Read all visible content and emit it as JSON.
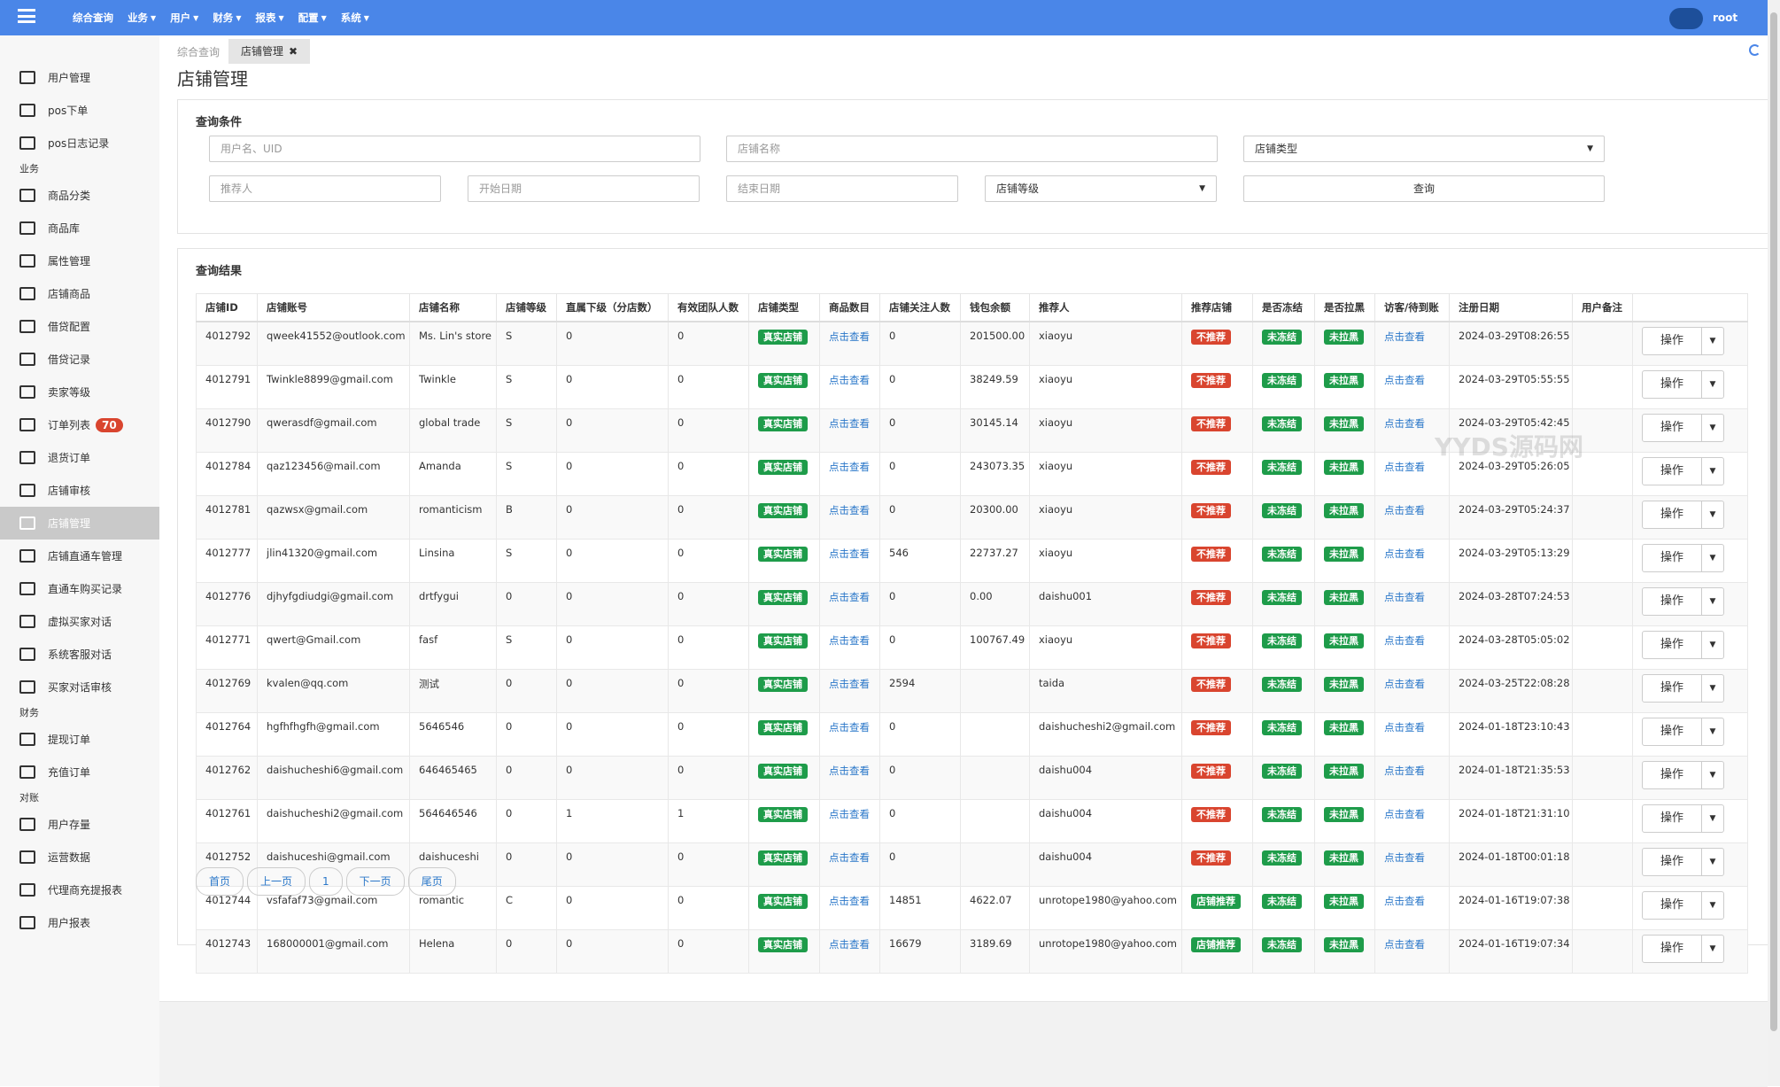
{
  "topbar": {
    "nav": [
      "综合查询",
      "业务",
      "用户",
      "财务",
      "报表",
      "配置",
      "系统"
    ],
    "user": "root"
  },
  "sidebar": [
    {
      "label": "用户管理"
    },
    {
      "label": "pos下单"
    },
    {
      "label": "pos日志记录"
    },
    {
      "heading": "业务"
    },
    {
      "label": "商品分类"
    },
    {
      "label": "商品库"
    },
    {
      "label": "属性管理"
    },
    {
      "label": "店铺商品"
    },
    {
      "label": "借贷配置"
    },
    {
      "label": "借贷记录"
    },
    {
      "label": "卖家等级"
    },
    {
      "label": "订单列表",
      "badge": 70
    },
    {
      "label": "退货订单"
    },
    {
      "label": "店铺审核"
    },
    {
      "label": "店铺管理",
      "active": true
    },
    {
      "label": "店铺直通车管理"
    },
    {
      "label": "直通车购买记录"
    },
    {
      "label": "虚拟买家对话"
    },
    {
      "label": "系统客服对话"
    },
    {
      "label": "买家对话审核"
    },
    {
      "heading": "财务"
    },
    {
      "label": "提现订单"
    },
    {
      "label": "充值订单"
    },
    {
      "heading": "对账"
    },
    {
      "label": "用户存量"
    },
    {
      "label": "运营数据"
    },
    {
      "label": "代理商充提报表"
    },
    {
      "label": "用户报表"
    }
  ],
  "tabs": [
    "综合查询",
    "店铺管理"
  ],
  "page_title": "店铺管理",
  "query": {
    "title": "查询条件",
    "username": "用户名、UID",
    "shop_name": "店铺名称",
    "shop_type": "店铺类型",
    "referrer": "推荐人",
    "start_date": "开始日期",
    "end_date": "结束日期",
    "shop_level": "店铺等级",
    "button": "查询"
  },
  "results": {
    "title": "查询结果",
    "headers": [
      "店铺ID",
      "店铺账号",
      "店铺名称",
      "店铺等级",
      "直属下级（分店数）",
      "有效团队人数",
      "店铺类型",
      "商品数目",
      "店铺关注人数",
      "钱包余额",
      "推荐人",
      "推荐店铺",
      "是否冻结",
      "是否拉黑",
      "访客/待到账",
      "注册日期",
      "用户备注"
    ],
    "action": "操作",
    "rows": [
      [
        "4012792",
        "qweek41552@outlook.com",
        "Ms. Lin's store",
        "S",
        "0",
        "0",
        "真实店铺",
        "点击查看",
        "0",
        "201500.00",
        "xiaoyu",
        "不推荐",
        "未冻结",
        "未拉黑",
        "点击查看",
        "2024-03-29T08:26:55"
      ],
      [
        "4012791",
        "Twinkle8899@gmail.com",
        "Twinkle",
        "S",
        "0",
        "0",
        "真实店铺",
        "点击查看",
        "0",
        "38249.59",
        "xiaoyu",
        "不推荐",
        "未冻结",
        "未拉黑",
        "点击查看",
        "2024-03-29T05:55:55"
      ],
      [
        "4012790",
        "qwerasdf@gmail.com",
        "global trade",
        "S",
        "0",
        "0",
        "真实店铺",
        "点击查看",
        "0",
        "30145.14",
        "xiaoyu",
        "不推荐",
        "未冻结",
        "未拉黑",
        "点击查看",
        "2024-03-29T05:42:45"
      ],
      [
        "4012784",
        "qaz123456@mail.com",
        "Amanda",
        "S",
        "0",
        "0",
        "真实店铺",
        "点击查看",
        "0",
        "243073.35",
        "xiaoyu",
        "不推荐",
        "未冻结",
        "未拉黑",
        "点击查看",
        "2024-03-29T05:26:05"
      ],
      [
        "4012781",
        "qazwsx@gmail.com",
        "romanticism",
        "B",
        "0",
        "0",
        "真实店铺",
        "点击查看",
        "0",
        "20300.00",
        "xiaoyu",
        "不推荐",
        "未冻结",
        "未拉黑",
        "点击查看",
        "2024-03-29T05:24:37"
      ],
      [
        "4012777",
        "jlin41320@gmail.com",
        "Linsina",
        "S",
        "0",
        "0",
        "真实店铺",
        "点击查看",
        "546",
        "22737.27",
        "xiaoyu",
        "不推荐",
        "未冻结",
        "未拉黑",
        "点击查看",
        "2024-03-29T05:13:29"
      ],
      [
        "4012776",
        "djhyfgdiudgi@gmail.com",
        "drtfygui",
        "0",
        "0",
        "0",
        "真实店铺",
        "点击查看",
        "0",
        "0.00",
        "daishu001",
        "不推荐",
        "未冻结",
        "未拉黑",
        "点击查看",
        "2024-03-28T07:24:53"
      ],
      [
        "4012771",
        "qwert@Gmail.com",
        "fasf",
        "S",
        "0",
        "0",
        "真实店铺",
        "点击查看",
        "0",
        "100767.49",
        "xiaoyu",
        "不推荐",
        "未冻结",
        "未拉黑",
        "点击查看",
        "2024-03-28T05:05:02"
      ],
      [
        "4012769",
        "kvalen@qq.com",
        "测试",
        "0",
        "0",
        "0",
        "真实店铺",
        "点击查看",
        "2594",
        null,
        "taida",
        "不推荐",
        "未冻结",
        "未拉黑",
        "点击查看",
        "2024-03-25T22:08:28"
      ],
      [
        "4012764",
        "hgfhfhgfh@gmail.com",
        "5646546",
        "0",
        "0",
        "0",
        "真实店铺",
        "点击查看",
        "0",
        null,
        "daishucheshi2@gmail.com",
        "不推荐",
        "未冻结",
        "未拉黑",
        "点击查看",
        "2024-01-18T23:10:43"
      ],
      [
        "4012762",
        "daishucheshi6@gmail.com",
        "646465465",
        "0",
        "0",
        "0",
        "真实店铺",
        "点击查看",
        "0",
        null,
        "daishu004",
        "不推荐",
        "未冻结",
        "未拉黑",
        "点击查看",
        "2024-01-18T21:35:53"
      ],
      [
        "4012761",
        "daishucheshi2@gmail.com",
        "564646546",
        "0",
        "1",
        "1",
        "真实店铺",
        "点击查看",
        "0",
        null,
        "daishu004",
        "不推荐",
        "未冻结",
        "未拉黑",
        "点击查看",
        "2024-01-18T21:31:10"
      ],
      [
        "4012752",
        "daishuceshi@gmail.com",
        "daishuceshi",
        "0",
        "0",
        "0",
        "真实店铺",
        "点击查看",
        "0",
        null,
        "daishu004",
        "不推荐",
        "未冻结",
        "未拉黑",
        "点击查看",
        "2024-01-18T00:01:18"
      ],
      [
        "4012744",
        "vsfafaf73@gmail.com",
        "romantic",
        "C",
        "0",
        "0",
        "真实店铺",
        "点击查看",
        "14851",
        "4622.07",
        "unrotope1980@yahoo.com",
        "店铺推荐",
        "未冻结",
        "未拉黑",
        "点击查看",
        "2024-01-16T19:07:38"
      ],
      [
        "4012743",
        "168000001@gmail.com",
        "Helena",
        "0",
        "0",
        "0",
        "真实店铺",
        "点击查看",
        "16679",
        "3189.69",
        "unrotope1980@yahoo.com",
        "店铺推荐",
        "未冻结",
        "未拉黑",
        "点击查看",
        "2024-01-16T19:07:34"
      ]
    ]
  },
  "pagination": [
    "首页",
    "上一页",
    "1",
    "下一页",
    "尾页"
  ],
  "watermark": "YYDS源码网"
}
